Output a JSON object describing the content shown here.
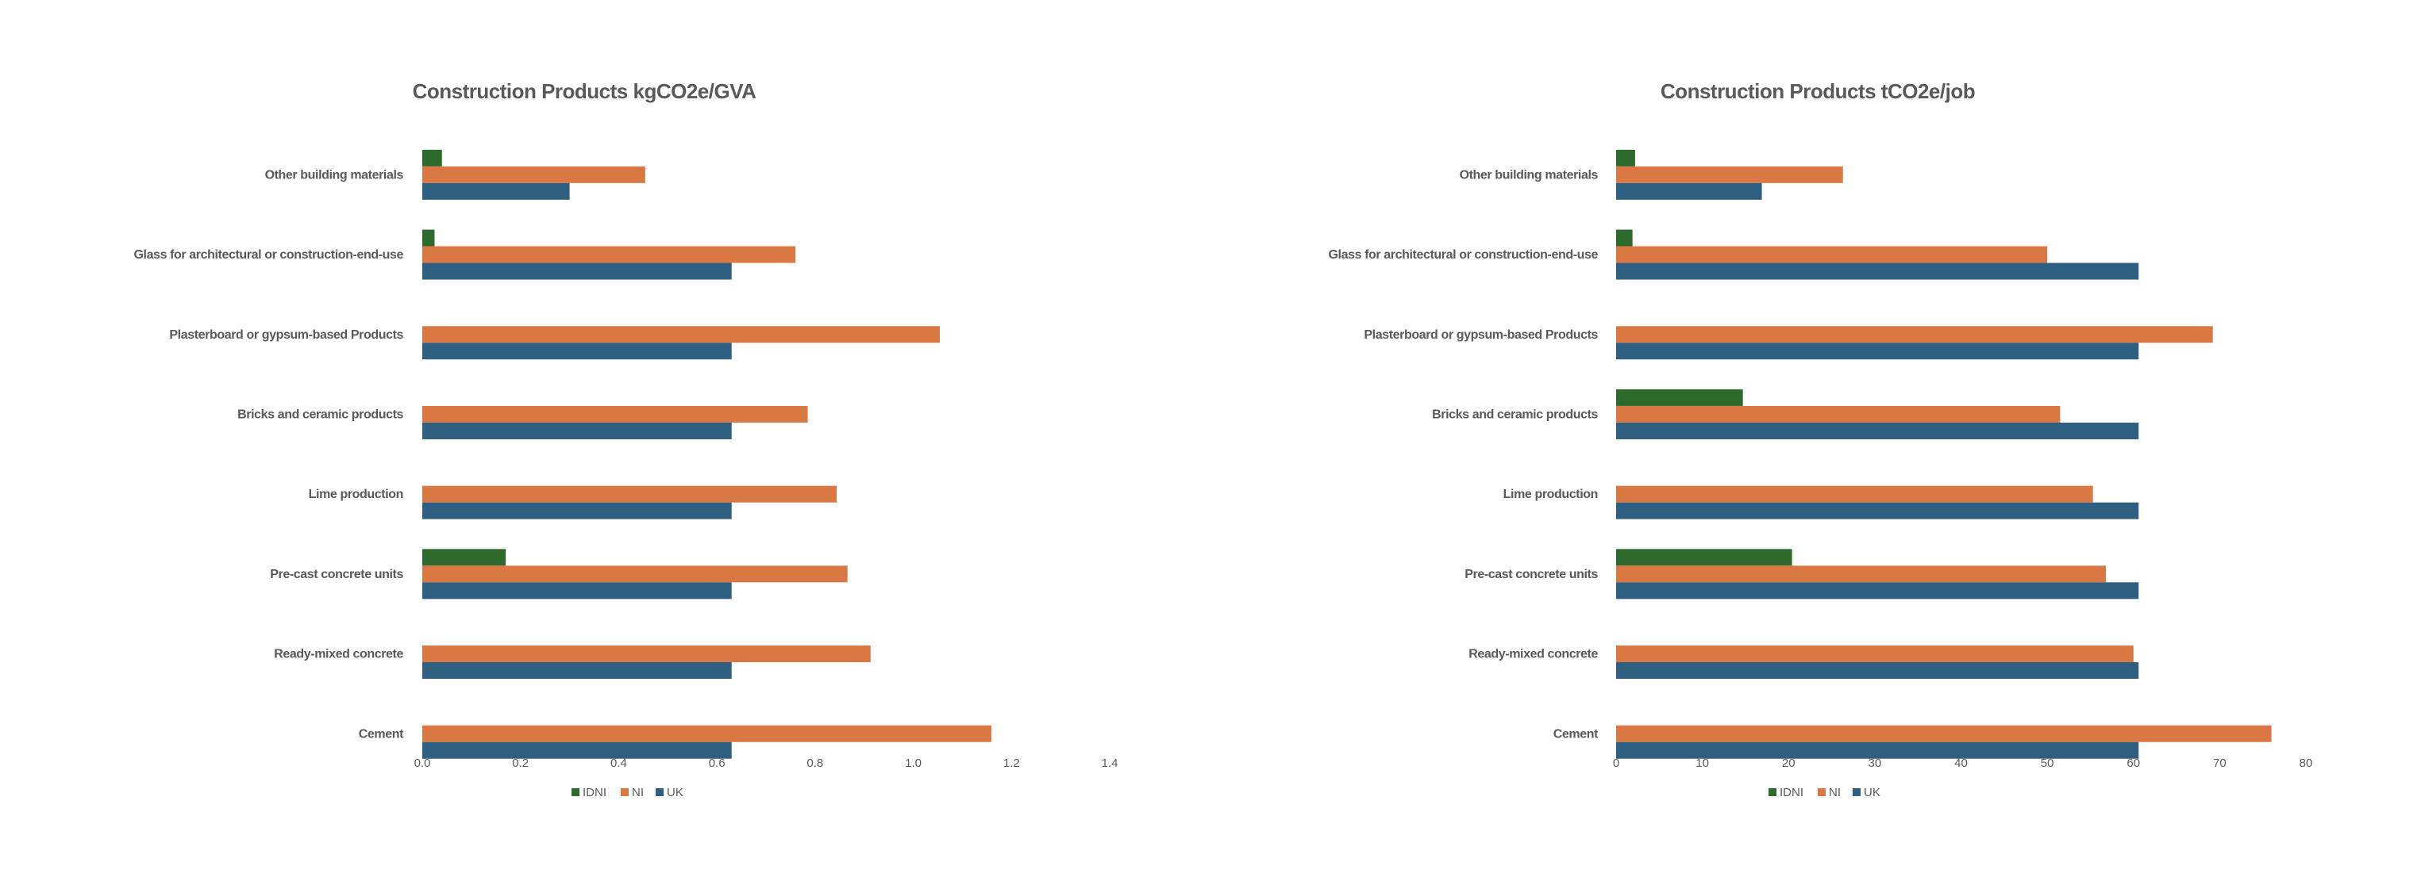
{
  "colors": {
    "IDNI": "#2f6a2d",
    "NI": "#da7843",
    "UK": "#2e5f80"
  },
  "chart_data": [
    {
      "type": "bar",
      "orientation": "horizontal",
      "title": "Construction Products kgCO2e/GVA",
      "categories": [
        "Other building materials",
        "Glass for architectural or construction-end-use",
        "Plasterboard or gypsum-based Products",
        "Bricks and ceramic products",
        "Lime production",
        "Pre-cast concrete units",
        "Ready-mixed concrete",
        "Cement"
      ],
      "series": [
        {
          "name": "IDNI",
          "values": [
            0.04,
            0.025,
            0,
            0,
            0,
            0.17,
            0,
            0
          ]
        },
        {
          "name": "NI",
          "values": [
            0.454,
            0.76,
            1.054,
            0.785,
            0.844,
            0.866,
            0.913,
            1.159
          ]
        },
        {
          "name": "UK",
          "values": [
            0.3,
            0.63,
            0.63,
            0.63,
            0.63,
            0.63,
            0.63,
            0.63
          ]
        }
      ],
      "xlim": [
        0,
        1.4
      ],
      "ticks": [
        "0.0",
        "0.2",
        "0.4",
        "0.6",
        "0.8",
        "1.0",
        "1.2",
        "1.4"
      ],
      "grid": false,
      "legend": "bottom"
    },
    {
      "type": "bar",
      "orientation": "horizontal",
      "title": "Construction Products tCO2e/job",
      "categories": [
        "Other building materials",
        "Glass for architectural or construction-end-use",
        "Plasterboard or gypsum-based Products",
        "Bricks and ceramic products",
        "Lime production",
        "Pre-cast concrete units",
        "Ready-mixed concrete",
        "Cement"
      ],
      "series": [
        {
          "name": "IDNI",
          "values": [
            2.2,
            1.9,
            0,
            14.7,
            0,
            20.4,
            0,
            0
          ]
        },
        {
          "name": "NI",
          "values": [
            26.3,
            50.0,
            69.2,
            51.5,
            55.3,
            56.8,
            60.0,
            76.0
          ]
        },
        {
          "name": "UK",
          "values": [
            16.9,
            60.6,
            60.6,
            60.6,
            60.6,
            60.6,
            60.6,
            60.6
          ]
        }
      ],
      "xlim": [
        0,
        80
      ],
      "ticks": [
        "0",
        "10",
        "20",
        "30",
        "40",
        "50",
        "60",
        "70",
        "80"
      ],
      "grid": false,
      "legend": "bottom"
    }
  ]
}
